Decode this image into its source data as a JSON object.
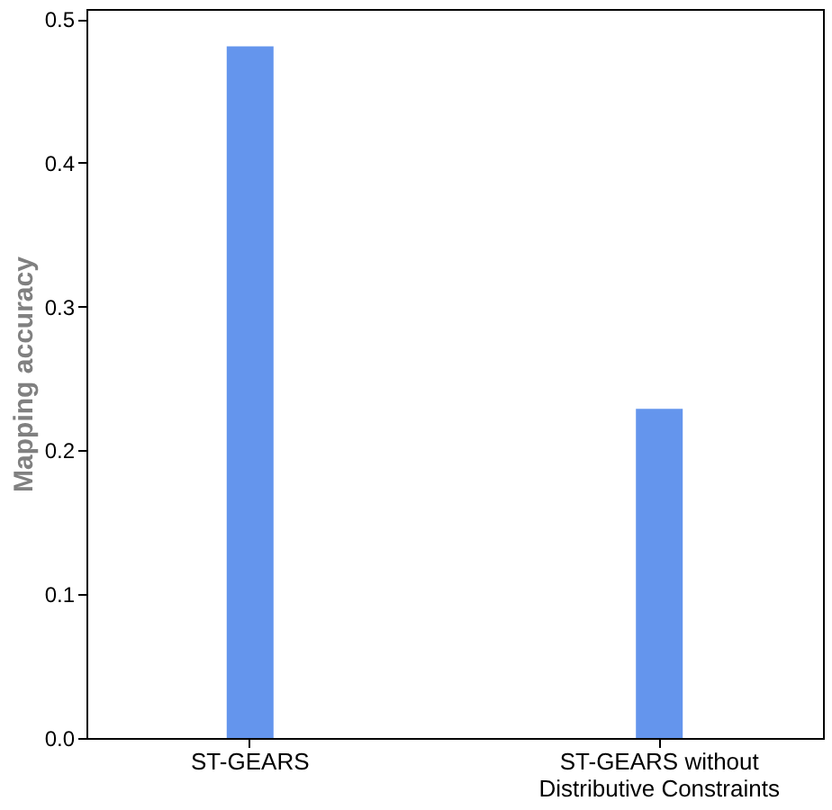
{
  "chart_data": {
    "type": "bar",
    "ylabel": "Mapping accuracy",
    "categories": [
      "ST-GEARS",
      "ST-GEARS without Distributive Constraints"
    ],
    "values": [
      0.481,
      0.229
    ],
    "color": "#6495ed",
    "ylim": [
      0,
      0.507
    ],
    "yticks": [
      {
        "value": 0,
        "label": "0.0"
      },
      0.1,
      0.2,
      0.3,
      0.4,
      0.5
    ],
    "grid": false
  }
}
